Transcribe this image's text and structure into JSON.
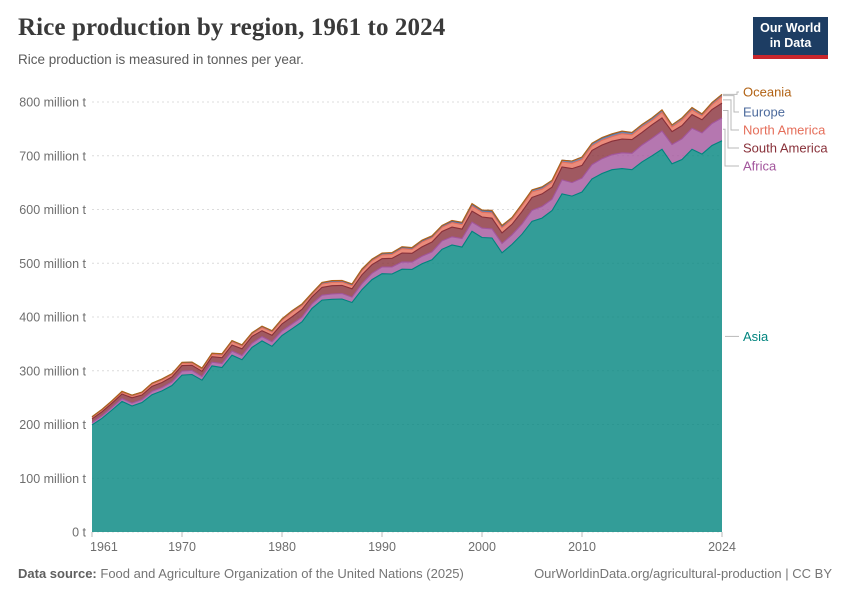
{
  "header": {
    "title": "Rice production by region, 1961 to 2024",
    "subtitle": "Rice production is measured in tonnes per year."
  },
  "logo": {
    "line1": "Our World",
    "line2": "in Data"
  },
  "footer": {
    "source_label": "Data source:",
    "source_text": "Food and Agriculture Organization of the United Nations (2025)",
    "link": "OurWorldinData.org/agricultural-production | CC BY"
  },
  "colors": {
    "logo_bg": "#1d3d63",
    "logo_red": "#c9262c",
    "grid": "#dcdcdc",
    "axis_text": "#6e6e6e",
    "connector": "#b9b9b9"
  },
  "chart_data": {
    "type": "area",
    "stacked": true,
    "title": "Rice production by region, 1961 to 2024",
    "xlabel": "",
    "ylabel": "",
    "unit": "million tonnes per year",
    "xlim": [
      1961,
      2024
    ],
    "ylim": [
      0,
      800
    ],
    "grid": "dashed-horizontal",
    "legend_position": "right-edge-labels",
    "ytick_values": [
      0,
      100,
      200,
      300,
      400,
      500,
      600,
      700,
      800
    ],
    "ytick_labels": [
      "0 t",
      "100 million t",
      "200 million t",
      "300 million t",
      "400 million t",
      "500 million t",
      "600 million t",
      "700 million t",
      "800 million t"
    ],
    "xtick_labels": [
      1961,
      1970,
      1980,
      1990,
      2000,
      2010,
      2024
    ],
    "years": [
      1961,
      1962,
      1963,
      1964,
      1965,
      1966,
      1967,
      1968,
      1969,
      1970,
      1971,
      1972,
      1973,
      1974,
      1975,
      1976,
      1977,
      1978,
      1979,
      1980,
      1981,
      1982,
      1983,
      1984,
      1985,
      1986,
      1987,
      1988,
      1989,
      1990,
      1991,
      1992,
      1993,
      1994,
      1995,
      1996,
      1997,
      1998,
      1999,
      2000,
      2001,
      2002,
      2003,
      2004,
      2005,
      2006,
      2007,
      2008,
      2009,
      2010,
      2011,
      2012,
      2013,
      2014,
      2015,
      2016,
      2017,
      2018,
      2019,
      2020,
      2021,
      2022,
      2023,
      2024
    ],
    "series": [
      {
        "name": "Asia",
        "color": "#00847E",
        "values": [
          199.2,
          211.5,
          227.0,
          243.0,
          234.5,
          241.0,
          255.5,
          262.5,
          272.5,
          292.0,
          293.0,
          282.5,
          309.0,
          306.0,
          329.0,
          320.5,
          343.5,
          355.5,
          345.5,
          365.5,
          378.0,
          391.0,
          416.0,
          431.5,
          433.0,
          433.5,
          427.0,
          451.0,
          469.5,
          480.5,
          480.0,
          489.0,
          488.5,
          499.0,
          506.5,
          526.0,
          534.0,
          530.0,
          559.5,
          548.0,
          547.0,
          519.5,
          535.0,
          554.0,
          578.0,
          584.0,
          598.0,
          629.0,
          625.0,
          632.5,
          657.0,
          667.0,
          674.0,
          676.0,
          674.0,
          688.5,
          700.0,
          712.0,
          685.0,
          693.0,
          712.0,
          703.0,
          719.0,
          728.0
        ]
      },
      {
        "name": "Africa",
        "color": "#A2559C",
        "values": [
          4.4,
          4.7,
          5.0,
          5.2,
          5.3,
          5.4,
          6.1,
          6.4,
          6.8,
          7.3,
          7.4,
          6.8,
          7.0,
          7.5,
          7.5,
          7.8,
          7.6,
          8.0,
          8.4,
          8.6,
          8.9,
          8.8,
          8.5,
          9.0,
          9.8,
          10.3,
          10.0,
          11.2,
          11.8,
          12.5,
          13.2,
          13.5,
          13.6,
          14.0,
          14.6,
          15.5,
          15.3,
          16.0,
          17.0,
          17.4,
          17.0,
          17.5,
          18.0,
          19.0,
          20.6,
          21.5,
          21.0,
          26.0,
          25.0,
          26.0,
          26.5,
          27.5,
          28.0,
          29.5,
          30.5,
          31.5,
          32.5,
          34.0,
          36.0,
          38.5,
          39.0,
          39.5,
          41.0,
          42.5
        ]
      },
      {
        "name": "South America",
        "color": "#883039",
        "values": [
          6.9,
          7.5,
          7.6,
          8.6,
          9.8,
          8.4,
          9.5,
          9.2,
          9.3,
          10.3,
          9.8,
          9.6,
          10.2,
          10.7,
          11.5,
          12.5,
          12.8,
          11.0,
          12.0,
          13.1,
          13.5,
          14.5,
          13.0,
          14.5,
          15.5,
          15.0,
          15.5,
          16.5,
          16.0,
          15.5,
          16.0,
          16.5,
          16.5,
          17.5,
          18.5,
          17.5,
          18.0,
          17.5,
          20.5,
          20.6,
          19.8,
          19.5,
          19.5,
          23.0,
          24.0,
          23.5,
          22.5,
          24.0,
          26.0,
          23.5,
          26.5,
          25.5,
          25.0,
          25.5,
          25.5,
          23.5,
          25.0,
          24.5,
          24.0,
          24.5,
          25.5,
          24.5,
          26.0,
          27.5
        ]
      },
      {
        "name": "North America",
        "color": "#E56E5A",
        "values": [
          2.5,
          3.0,
          3.1,
          3.3,
          3.5,
          3.9,
          4.1,
          4.7,
          4.2,
          4.0,
          3.9,
          3.9,
          4.2,
          5.1,
          5.8,
          5.3,
          4.5,
          6.0,
          6.0,
          6.6,
          8.4,
          7.0,
          4.5,
          6.3,
          6.1,
          6.1,
          5.9,
          7.3,
          7.1,
          7.1,
          7.2,
          8.1,
          7.1,
          9.0,
          7.9,
          7.8,
          8.3,
          8.5,
          9.5,
          8.7,
          9.8,
          9.6,
          9.1,
          10.5,
          10.1,
          8.8,
          9.0,
          9.2,
          10.0,
          11.0,
          8.4,
          9.0,
          8.6,
          10.0,
          8.7,
          10.2,
          8.1,
          10.2,
          8.4,
          10.3,
          8.7,
          7.3,
          9.0,
          12.0
        ]
      },
      {
        "name": "Europe",
        "color": "#4C6A9C",
        "values": [
          1.3,
          1.4,
          1.4,
          1.5,
          1.5,
          1.5,
          1.6,
          1.7,
          1.7,
          1.8,
          1.9,
          1.9,
          2.0,
          2.0,
          2.0,
          1.9,
          1.9,
          2.0,
          2.1,
          2.2,
          2.2,
          2.3,
          2.2,
          2.4,
          2.5,
          2.4,
          2.5,
          2.6,
          2.5,
          2.4,
          2.5,
          2.6,
          2.6,
          2.5,
          2.5,
          2.6,
          2.7,
          2.8,
          3.2,
          3.2,
          3.1,
          3.2,
          3.3,
          3.4,
          3.4,
          3.4,
          3.5,
          3.5,
          4.2,
          4.4,
          4.3,
          4.1,
          4.0,
          4.1,
          4.1,
          4.1,
          4.2,
          4.1,
          4.0,
          4.0,
          4.0,
          3.4,
          3.6,
          3.8
        ]
      },
      {
        "name": "Oceania",
        "color": "#B16214",
        "values": [
          0.13,
          0.15,
          0.16,
          0.17,
          0.19,
          0.2,
          0.23,
          0.25,
          0.26,
          0.27,
          0.3,
          0.35,
          0.33,
          0.41,
          0.45,
          0.43,
          0.5,
          0.55,
          0.65,
          0.7,
          0.75,
          0.85,
          0.6,
          0.75,
          0.85,
          0.75,
          0.65,
          0.8,
          0.85,
          0.92,
          0.85,
          1.05,
          1.06,
          1.1,
          1.05,
          0.97,
          1.4,
          1.45,
          1.4,
          1.1,
          1.8,
          1.3,
          0.44,
          0.6,
          0.34,
          1.0,
          0.17,
          0.02,
          0.07,
          0.2,
          0.73,
          0.94,
          1.2,
          0.84,
          0.7,
          0.28,
          0.81,
          0.64,
          0.06,
          0.06,
          0.5,
          0.4,
          0.5,
          0.6
        ]
      }
    ],
    "legend_order_top_to_bottom": [
      "Oceania",
      "Europe",
      "North America",
      "South America",
      "Africa",
      "Asia"
    ]
  }
}
